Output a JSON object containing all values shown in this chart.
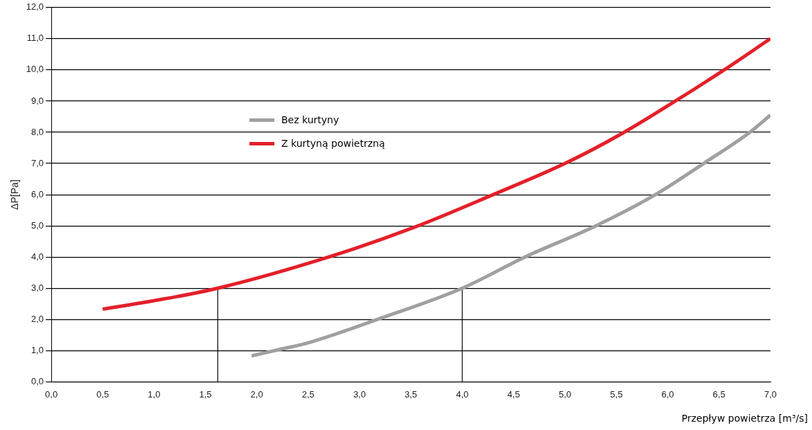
{
  "chart_data": {
    "type": "line",
    "xlabel": "Przepływ powietrza [m³/s]",
    "ylabel": "ΔP[Pa]",
    "xlim": [
      0,
      7
    ],
    "ylim": [
      0,
      12
    ],
    "xticks": [
      {
        "value": 0,
        "label": "0,0"
      },
      {
        "value": 0.5,
        "label": "0,5"
      },
      {
        "value": 1,
        "label": "1,0"
      },
      {
        "value": 1.5,
        "label": "1,5"
      },
      {
        "value": 2,
        "label": "2,0"
      },
      {
        "value": 2.5,
        "label": "2,5"
      },
      {
        "value": 3,
        "label": "3,0"
      },
      {
        "value": 3.5,
        "label": "3,5"
      },
      {
        "value": 4,
        "label": "4,0"
      },
      {
        "value": 4.5,
        "label": "4,5"
      },
      {
        "value": 5,
        "label": "5,0"
      },
      {
        "value": 5.5,
        "label": "5,5"
      },
      {
        "value": 6,
        "label": "6,0"
      },
      {
        "value": 6.5,
        "label": "6,5"
      },
      {
        "value": 7,
        "label": "7,0"
      }
    ],
    "yticks": [
      {
        "value": 0,
        "label": "0,0"
      },
      {
        "value": 1,
        "label": "1,0"
      },
      {
        "value": 2,
        "label": "2,0"
      },
      {
        "value": 3,
        "label": "3,0"
      },
      {
        "value": 4,
        "label": "4,0"
      },
      {
        "value": 5,
        "label": "5,0"
      },
      {
        "value": 6,
        "label": "6,0"
      },
      {
        "value": 7,
        "label": "7,0"
      },
      {
        "value": 8,
        "label": "8,0"
      },
      {
        "value": 9,
        "label": "9,0"
      },
      {
        "value": 10,
        "label": "10,0"
      },
      {
        "value": 11,
        "label": "11,0"
      },
      {
        "value": 12,
        "label": "12,0"
      }
    ],
    "grid": "y",
    "legend": "top left",
    "marker": "none",
    "series": [
      {
        "name": "Bez kurtyny",
        "color": "#a0a0a0",
        "x": [
          1.95,
          2.2,
          2.5,
          3.19,
          4.0,
          4.61,
          5.3,
          5.88,
          6.35,
          6.8,
          7.0
        ],
        "values": [
          0.83,
          1.02,
          1.25,
          2.02,
          3.0,
          4.0,
          5.0,
          6.0,
          7.0,
          8.0,
          8.55
        ]
      },
      {
        "name": "Z kurtyną powietrzną",
        "color": "#e3202a",
        "x": [
          0.5,
          1.0,
          1.62,
          2.7,
          3.53,
          4.3,
          5.0,
          5.55,
          6.05,
          6.55,
          7.0
        ],
        "values": [
          2.33,
          2.6,
          3.0,
          4.0,
          4.95,
          6.0,
          7.0,
          7.95,
          8.95,
          10.0,
          11.0
        ]
      },
      {
        "color": "#000000",
        "x": [
          1.62,
          1.62
        ],
        "values": [
          0,
          3.0
        ]
      },
      {
        "color": "#000000",
        "x": [
          4.0,
          4.0
        ],
        "values": [
          0,
          3.0
        ]
      }
    ]
  }
}
